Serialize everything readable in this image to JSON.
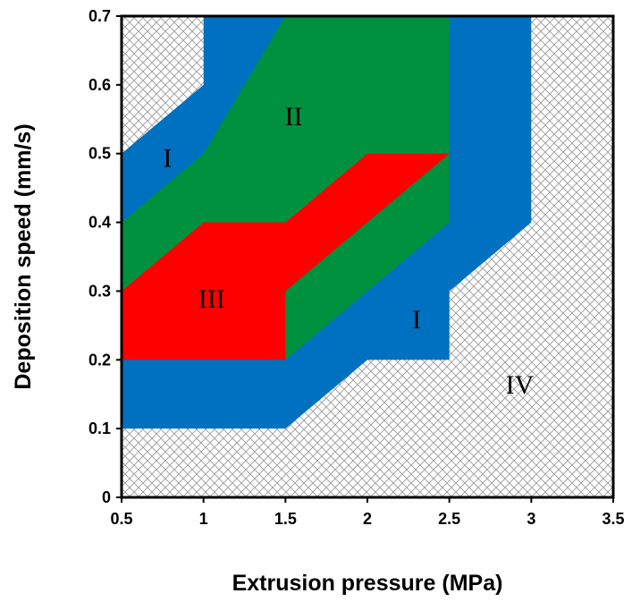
{
  "chart_data": {
    "type": "area",
    "title": "",
    "xlabel": "Extrusion pressure (MPa)",
    "ylabel": "Deposition speed (mm/s)",
    "xlim": [
      0.5,
      3.5
    ],
    "ylim": [
      0,
      0.7
    ],
    "xticks": [
      "0.5",
      "1",
      "1.5",
      "2",
      "2.5",
      "3",
      "3.5"
    ],
    "yticks": [
      "0",
      "0.1",
      "0.2",
      "0.3",
      "0.4",
      "0.5",
      "0.6",
      "0.7"
    ],
    "grid": false,
    "legend": "none",
    "background_pattern": "crosshatch",
    "regions": [
      {
        "id": "I",
        "color": "#0070c0",
        "polygon": [
          [
            0.5,
            0.1
          ],
          [
            1.5,
            0.1
          ],
          [
            2.0,
            0.2
          ],
          [
            2.5,
            0.2
          ],
          [
            2.5,
            0.3
          ],
          [
            3.0,
            0.4
          ],
          [
            3.0,
            0.7
          ],
          [
            1.0,
            0.7
          ],
          [
            1.0,
            0.6
          ],
          [
            0.5,
            0.5
          ]
        ]
      },
      {
        "id": "II",
        "color": "#00913f",
        "polygon": [
          [
            0.5,
            0.2
          ],
          [
            1.5,
            0.2
          ],
          [
            2.5,
            0.4
          ],
          [
            2.5,
            0.7
          ],
          [
            1.5,
            0.7
          ],
          [
            1.0,
            0.5
          ],
          [
            0.5,
            0.4
          ]
        ]
      },
      {
        "id": "III",
        "color": "#ff0000",
        "polygon": [
          [
            0.5,
            0.2
          ],
          [
            1.5,
            0.2
          ],
          [
            1.5,
            0.3
          ],
          [
            2.5,
            0.5
          ],
          [
            2.0,
            0.5
          ],
          [
            1.5,
            0.4
          ],
          [
            1.0,
            0.4
          ],
          [
            0.5,
            0.3
          ]
        ]
      }
    ],
    "labels": [
      {
        "text": "I",
        "x": 0.78,
        "y": 0.49
      },
      {
        "text": "II",
        "x": 1.55,
        "y": 0.55
      },
      {
        "text": "III",
        "x": 1.05,
        "y": 0.285
      },
      {
        "text": "I",
        "x": 2.3,
        "y": 0.255
      },
      {
        "text": "IV",
        "x": 2.93,
        "y": 0.16
      }
    ]
  }
}
